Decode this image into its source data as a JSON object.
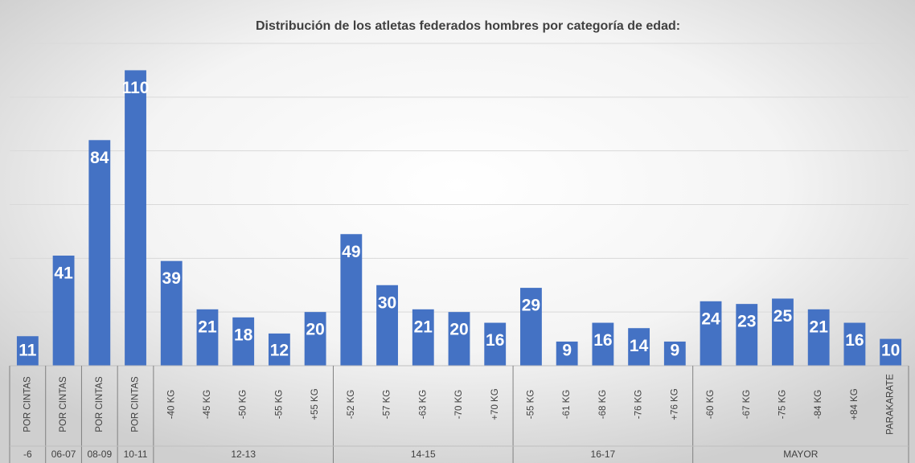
{
  "chart_data": {
    "type": "bar",
    "title": "Distribución de los atletas federados hombres por categoría de edad:",
    "categories": [
      "POR CINTAS",
      "POR CINTAS",
      "POR CINTAS",
      "POR CINTAS",
      "-40 KG",
      "-45 KG",
      "-50 KG",
      "-55 KG",
      "+55 KG",
      "-52 KG",
      "-57 KG",
      "-63 KG",
      "-70 KG",
      "+70 KG",
      "-55 KG",
      "-61 KG",
      "-68 KG",
      "-76 KG",
      "+76 KG",
      "-60 KG",
      "-67 KG",
      "-75 KG",
      "-84 KG",
      "+84 KG",
      "PARAKARATE"
    ],
    "category_groups": [
      "-6",
      "06-07",
      "08-09",
      "10-11",
      "12-13",
      null,
      null,
      null,
      null,
      "14-15",
      null,
      null,
      null,
      null,
      "16-17",
      null,
      null,
      null,
      null,
      "MAYOR",
      null,
      null,
      null,
      null,
      null
    ],
    "values": [
      11,
      41,
      84,
      110,
      39,
      21,
      18,
      12,
      20,
      49,
      30,
      21,
      20,
      16,
      29,
      9,
      16,
      14,
      9,
      24,
      23,
      25,
      21,
      16,
      10
    ],
    "color": "#4472c4",
    "ylim": [
      0,
      120
    ],
    "yticks": [
      0,
      20,
      40,
      60,
      80,
      100,
      120
    ],
    "grid": true
  }
}
